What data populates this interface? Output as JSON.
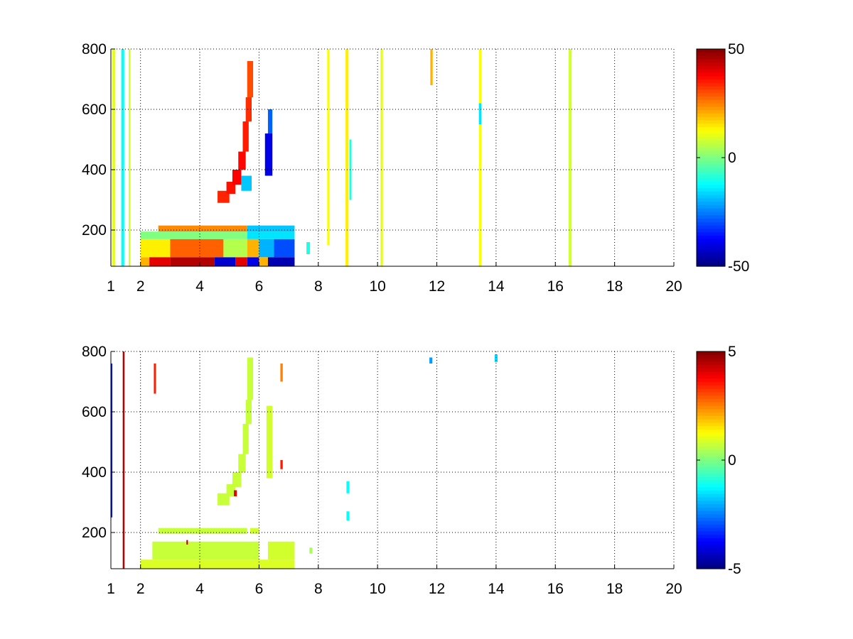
{
  "chart_data": [
    {
      "type": "heatmap",
      "title": "",
      "xlabel": "",
      "ylabel": "",
      "xlim": [
        1,
        20
      ],
      "ylim": [
        80,
        800
      ],
      "x_ticks": [
        1,
        2,
        4,
        6,
        8,
        10,
        12,
        14,
        16,
        18,
        20
      ],
      "x_tick_labels": [
        "1",
        "2",
        "4",
        "6",
        "8",
        "10",
        "12",
        "14",
        "16",
        "18",
        "20"
      ],
      "y_ticks": [
        200,
        400,
        600,
        800
      ],
      "y_tick_labels": [
        "200",
        "400",
        "600",
        "800"
      ],
      "grid": true,
      "colormap": "jet",
      "clim": [
        -50,
        50
      ],
      "colorbar": {
        "ticks": [
          50,
          0,
          -50
        ],
        "tick_labels": [
          "50",
          "0",
          "-50"
        ]
      },
      "regions": [
        {
          "x": [
            2.0,
            2.3
          ],
          "y": [
            80,
            110
          ],
          "value": 20
        },
        {
          "x": [
            2.3,
            3.0
          ],
          "y": [
            80,
            110
          ],
          "value": 40
        },
        {
          "x": [
            3.0,
            4.5
          ],
          "y": [
            80,
            110
          ],
          "value": 45
        },
        {
          "x": [
            4.5,
            5.2
          ],
          "y": [
            80,
            110
          ],
          "value": -42
        },
        {
          "x": [
            5.2,
            5.6
          ],
          "y": [
            80,
            110
          ],
          "value": 40
        },
        {
          "x": [
            5.6,
            6.0
          ],
          "y": [
            80,
            110
          ],
          "value": -40
        },
        {
          "x": [
            6.0,
            6.3
          ],
          "y": [
            80,
            110
          ],
          "value": 20
        },
        {
          "x": [
            6.3,
            7.2
          ],
          "y": [
            80,
            110
          ],
          "value": -45
        },
        {
          "x": [
            2.0,
            3.0
          ],
          "y": [
            110,
            170
          ],
          "value": 14
        },
        {
          "x": [
            3.0,
            4.8
          ],
          "y": [
            110,
            170
          ],
          "value": 28
        },
        {
          "x": [
            4.8,
            5.6
          ],
          "y": [
            110,
            170
          ],
          "value": 5
        },
        {
          "x": [
            5.6,
            6.0
          ],
          "y": [
            110,
            170
          ],
          "value": 20
        },
        {
          "x": [
            6.0,
            6.5
          ],
          "y": [
            110,
            170
          ],
          "value": -20
        },
        {
          "x": [
            6.5,
            7.2
          ],
          "y": [
            110,
            170
          ],
          "value": -30
        },
        {
          "x": [
            2.0,
            5.6
          ],
          "y": [
            170,
            195
          ],
          "value": 0
        },
        {
          "x": [
            5.6,
            7.2
          ],
          "y": [
            170,
            195
          ],
          "value": -15
        },
        {
          "x": [
            2.6,
            5.6
          ],
          "y": [
            195,
            215
          ],
          "value": 24
        },
        {
          "x": [
            5.6,
            7.2
          ],
          "y": [
            195,
            215
          ],
          "value": -18
        },
        {
          "x": [
            4.6,
            5.0
          ],
          "y": [
            290,
            330
          ],
          "value": 34
        },
        {
          "x": [
            4.9,
            5.2
          ],
          "y": [
            320,
            360
          ],
          "value": 36
        },
        {
          "x": [
            5.1,
            5.4
          ],
          "y": [
            350,
            400
          ],
          "value": 38
        },
        {
          "x": [
            5.3,
            5.55
          ],
          "y": [
            400,
            460
          ],
          "value": 37
        },
        {
          "x": [
            5.45,
            5.65
          ],
          "y": [
            460,
            560
          ],
          "value": 35
        },
        {
          "x": [
            5.55,
            5.75
          ],
          "y": [
            560,
            640
          ],
          "value": 33
        },
        {
          "x": [
            5.6,
            5.8
          ],
          "y": [
            640,
            760
          ],
          "value": 30
        },
        {
          "x": [
            5.4,
            5.75
          ],
          "y": [
            330,
            380
          ],
          "value": -18
        },
        {
          "x": [
            6.2,
            6.45
          ],
          "y": [
            380,
            520
          ],
          "value": -40
        },
        {
          "x": [
            6.3,
            6.45
          ],
          "y": [
            520,
            600
          ],
          "value": -28
        },
        {
          "x": [
            1.35,
            1.45
          ],
          "y": [
            80,
            800
          ],
          "value": -12
        },
        {
          "x": [
            1.05,
            1.15
          ],
          "y": [
            80,
            800
          ],
          "value": 10
        },
        {
          "x": [
            1.6,
            1.66
          ],
          "y": [
            80,
            800
          ],
          "value": 8
        },
        {
          "x": [
            8.92,
            9.02
          ],
          "y": [
            80,
            800
          ],
          "value": 14
        },
        {
          "x": [
            9.05,
            9.12
          ],
          "y": [
            300,
            500
          ],
          "value": -10
        },
        {
          "x": [
            10.1,
            10.18
          ],
          "y": [
            80,
            800
          ],
          "value": 10
        },
        {
          "x": [
            11.78,
            11.86
          ],
          "y": [
            680,
            800
          ],
          "value": 20
        },
        {
          "x": [
            13.42,
            13.5
          ],
          "y": [
            80,
            800
          ],
          "value": 12
        },
        {
          "x": [
            13.42,
            13.5
          ],
          "y": [
            550,
            620
          ],
          "value": -15
        },
        {
          "x": [
            16.45,
            16.55
          ],
          "y": [
            80,
            800
          ],
          "value": 8
        },
        {
          "x": [
            8.3,
            8.38
          ],
          "y": [
            150,
            800
          ],
          "value": 12
        },
        {
          "x": [
            7.6,
            7.72
          ],
          "y": [
            120,
            160
          ],
          "value": -10
        }
      ]
    },
    {
      "type": "heatmap",
      "title": "",
      "xlabel": "",
      "ylabel": "",
      "xlim": [
        1,
        20
      ],
      "ylim": [
        80,
        800
      ],
      "x_ticks": [
        1,
        2,
        4,
        6,
        8,
        10,
        12,
        14,
        16,
        18,
        20
      ],
      "x_tick_labels": [
        "1",
        "2",
        "4",
        "6",
        "8",
        "10",
        "12",
        "14",
        "16",
        "18",
        "20"
      ],
      "y_ticks": [
        200,
        400,
        600,
        800
      ],
      "y_tick_labels": [
        "200",
        "400",
        "600",
        "800"
      ],
      "grid": true,
      "colormap": "jet",
      "clim": [
        -5,
        5
      ],
      "colorbar": {
        "ticks": [
          5,
          0,
          -5
        ],
        "tick_labels": [
          "5",
          "0",
          "-5"
        ]
      },
      "regions": [
        {
          "x": [
            2.0,
            7.2
          ],
          "y": [
            80,
            110
          ],
          "value": 0.9
        },
        {
          "x": [
            2.4,
            6.0
          ],
          "y": [
            110,
            170
          ],
          "value": 0.7
        },
        {
          "x": [
            6.3,
            7.2
          ],
          "y": [
            110,
            170
          ],
          "value": 0.8
        },
        {
          "x": [
            2.6,
            5.6
          ],
          "y": [
            195,
            215
          ],
          "value": 0.7
        },
        {
          "x": [
            5.7,
            6.0
          ],
          "y": [
            195,
            215
          ],
          "value": 0.8
        },
        {
          "x": [
            4.6,
            5.0
          ],
          "y": [
            290,
            330
          ],
          "value": 0.7
        },
        {
          "x": [
            4.9,
            5.2
          ],
          "y": [
            320,
            360
          ],
          "value": 0.7
        },
        {
          "x": [
            5.1,
            5.4
          ],
          "y": [
            350,
            400
          ],
          "value": 0.7
        },
        {
          "x": [
            5.3,
            5.55
          ],
          "y": [
            400,
            460
          ],
          "value": 0.7
        },
        {
          "x": [
            5.45,
            5.65
          ],
          "y": [
            460,
            560
          ],
          "value": 0.7
        },
        {
          "x": [
            5.55,
            5.75
          ],
          "y": [
            560,
            640
          ],
          "value": 0.7
        },
        {
          "x": [
            5.6,
            5.8
          ],
          "y": [
            640,
            780
          ],
          "value": 0.7
        },
        {
          "x": [
            6.25,
            6.45
          ],
          "y": [
            380,
            620
          ],
          "value": 0.8
        },
        {
          "x": [
            1.0,
            1.05
          ],
          "y": [
            250,
            760
          ],
          "value": -3.5
        },
        {
          "x": [
            1.4,
            1.46
          ],
          "y": [
            80,
            800
          ],
          "value": 4.5
        },
        {
          "x": [
            2.45,
            2.52
          ],
          "y": [
            660,
            760
          ],
          "value": 3.5
        },
        {
          "x": [
            6.72,
            6.8
          ],
          "y": [
            700,
            760
          ],
          "value": 2.5
        },
        {
          "x": [
            6.72,
            6.8
          ],
          "y": [
            410,
            440
          ],
          "value": 3.5
        },
        {
          "x": [
            8.95,
            9.05
          ],
          "y": [
            330,
            370
          ],
          "value": -1.2
        },
        {
          "x": [
            8.95,
            9.05
          ],
          "y": [
            240,
            270
          ],
          "value": -1.2
        },
        {
          "x": [
            11.75,
            11.85
          ],
          "y": [
            760,
            780
          ],
          "value": -2.2
        },
        {
          "x": [
            13.95,
            14.05
          ],
          "y": [
            765,
            790
          ],
          "value": -1.6
        },
        {
          "x": [
            5.15,
            5.25
          ],
          "y": [
            320,
            340
          ],
          "value": 4.0
        },
        {
          "x": [
            3.55,
            3.6
          ],
          "y": [
            160,
            175
          ],
          "value": 4.5
        },
        {
          "x": [
            7.7,
            7.8
          ],
          "y": [
            130,
            150
          ],
          "value": 0.4
        }
      ]
    }
  ]
}
